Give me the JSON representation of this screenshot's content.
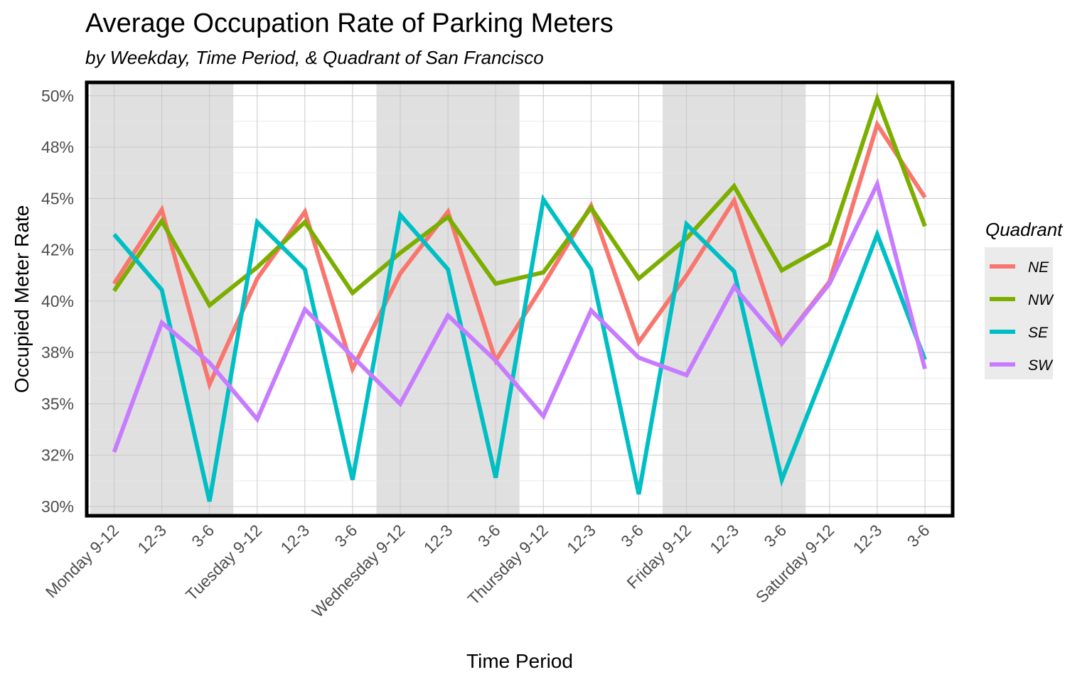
{
  "chart_data": {
    "type": "line",
    "title": "Average Occupation Rate of Parking Meters",
    "subtitle": "by Weekday, Time Period, & Quadrant of San Francisco",
    "xlabel": "Time Period",
    "ylabel": "Occupied Meter Rate",
    "categories": [
      "Monday 9-12",
      "12-3",
      "3-6",
      "Tuesday 9-12",
      "12-3",
      "3-6",
      "Wednesday 9-12",
      "12-3",
      "3-6",
      "Thursday 9-12",
      "12-3",
      "3-6",
      "Friday 9-12",
      "12-3",
      "3-6",
      "Saturday 9-12",
      "12-3",
      "3-6"
    ],
    "y_ticks": [
      {
        "value": 0.3,
        "label": "30%"
      },
      {
        "value": 0.325,
        "label": "32%"
      },
      {
        "value": 0.35,
        "label": "35%"
      },
      {
        "value": 0.375,
        "label": "38%"
      },
      {
        "value": 0.4,
        "label": "40%"
      },
      {
        "value": 0.425,
        "label": "42%"
      },
      {
        "value": 0.45,
        "label": "45%"
      },
      {
        "value": 0.475,
        "label": "48%"
      },
      {
        "value": 0.5,
        "label": "50%"
      }
    ],
    "ylim": [
      0.2955,
      0.5065
    ],
    "grid": true,
    "shaded_weekdays": [
      "Monday",
      "Wednesday",
      "Friday"
    ],
    "shaded_ranges": [
      [
        0,
        2
      ],
      [
        6,
        8
      ],
      [
        12,
        14
      ]
    ],
    "shade_color": "#e0e0e0",
    "legend": {
      "title": "Quadrant",
      "position": "right"
    },
    "series": [
      {
        "name": "NE",
        "color": "#F8766D",
        "values": [
          0.4085,
          0.4445,
          0.3595,
          0.411,
          0.4435,
          0.367,
          0.4135,
          0.4435,
          0.371,
          0.408,
          0.4465,
          0.38,
          0.4125,
          0.449,
          0.3795,
          0.4095,
          0.486,
          0.4505
        ]
      },
      {
        "name": "NW",
        "color": "#7CAE00",
        "values": [
          0.405,
          0.439,
          0.398,
          0.4165,
          0.4385,
          0.404,
          0.4235,
          0.441,
          0.4085,
          0.414,
          0.4455,
          0.411,
          0.4305,
          0.456,
          0.415,
          0.428,
          0.4985,
          0.4365
        ]
      },
      {
        "name": "SE",
        "color": "#00BFC4",
        "values": [
          0.4325,
          0.4055,
          0.3025,
          0.4385,
          0.4155,
          0.313,
          0.442,
          0.4155,
          0.314,
          0.4495,
          0.4155,
          0.306,
          0.4375,
          0.4145,
          0.313,
          0.372,
          0.4325,
          0.3715
        ]
      },
      {
        "name": "SW",
        "color": "#C77CFF",
        "values": [
          0.3265,
          0.3895,
          0.37,
          0.3425,
          0.396,
          0.373,
          0.35,
          0.393,
          0.371,
          0.344,
          0.3955,
          0.3725,
          0.364,
          0.407,
          0.3795,
          0.4085,
          0.457,
          0.367
        ]
      }
    ]
  }
}
